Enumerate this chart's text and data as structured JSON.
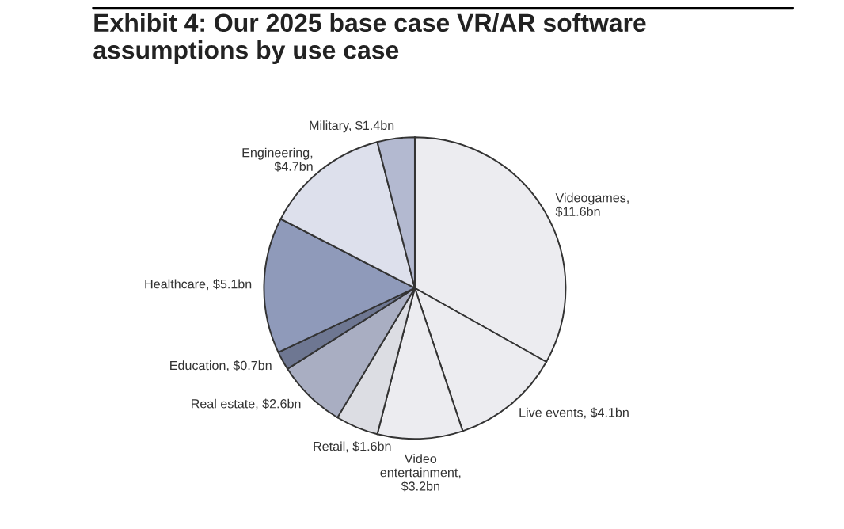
{
  "chart_data": {
    "type": "pie",
    "title": "Exhibit 4: Our 2025 base case VR/AR software\nassumptions by use case",
    "categories": [
      "Videogames,\n$11.6bn",
      "Live events, $4.1bn",
      "Video\nentertainment,\n$3.2bn",
      "Retail, $1.6bn",
      "Real estate, $2.6bn",
      "Education, $0.7bn",
      "Healthcare, $5.1bn",
      "Engineering,\n$4.7bn",
      "Military, $1.4bn"
    ],
    "values": [
      11.6,
      4.1,
      3.2,
      1.6,
      2.6,
      0.7,
      5.1,
      4.7,
      1.4
    ],
    "colors": [
      "#ececf0",
      "#ececf0",
      "#ececf0",
      "#dcdde3",
      "#a9aec2",
      "#6e7792",
      "#8f9aba",
      "#dde0ec",
      "#b3b9d0"
    ],
    "legend": false
  }
}
